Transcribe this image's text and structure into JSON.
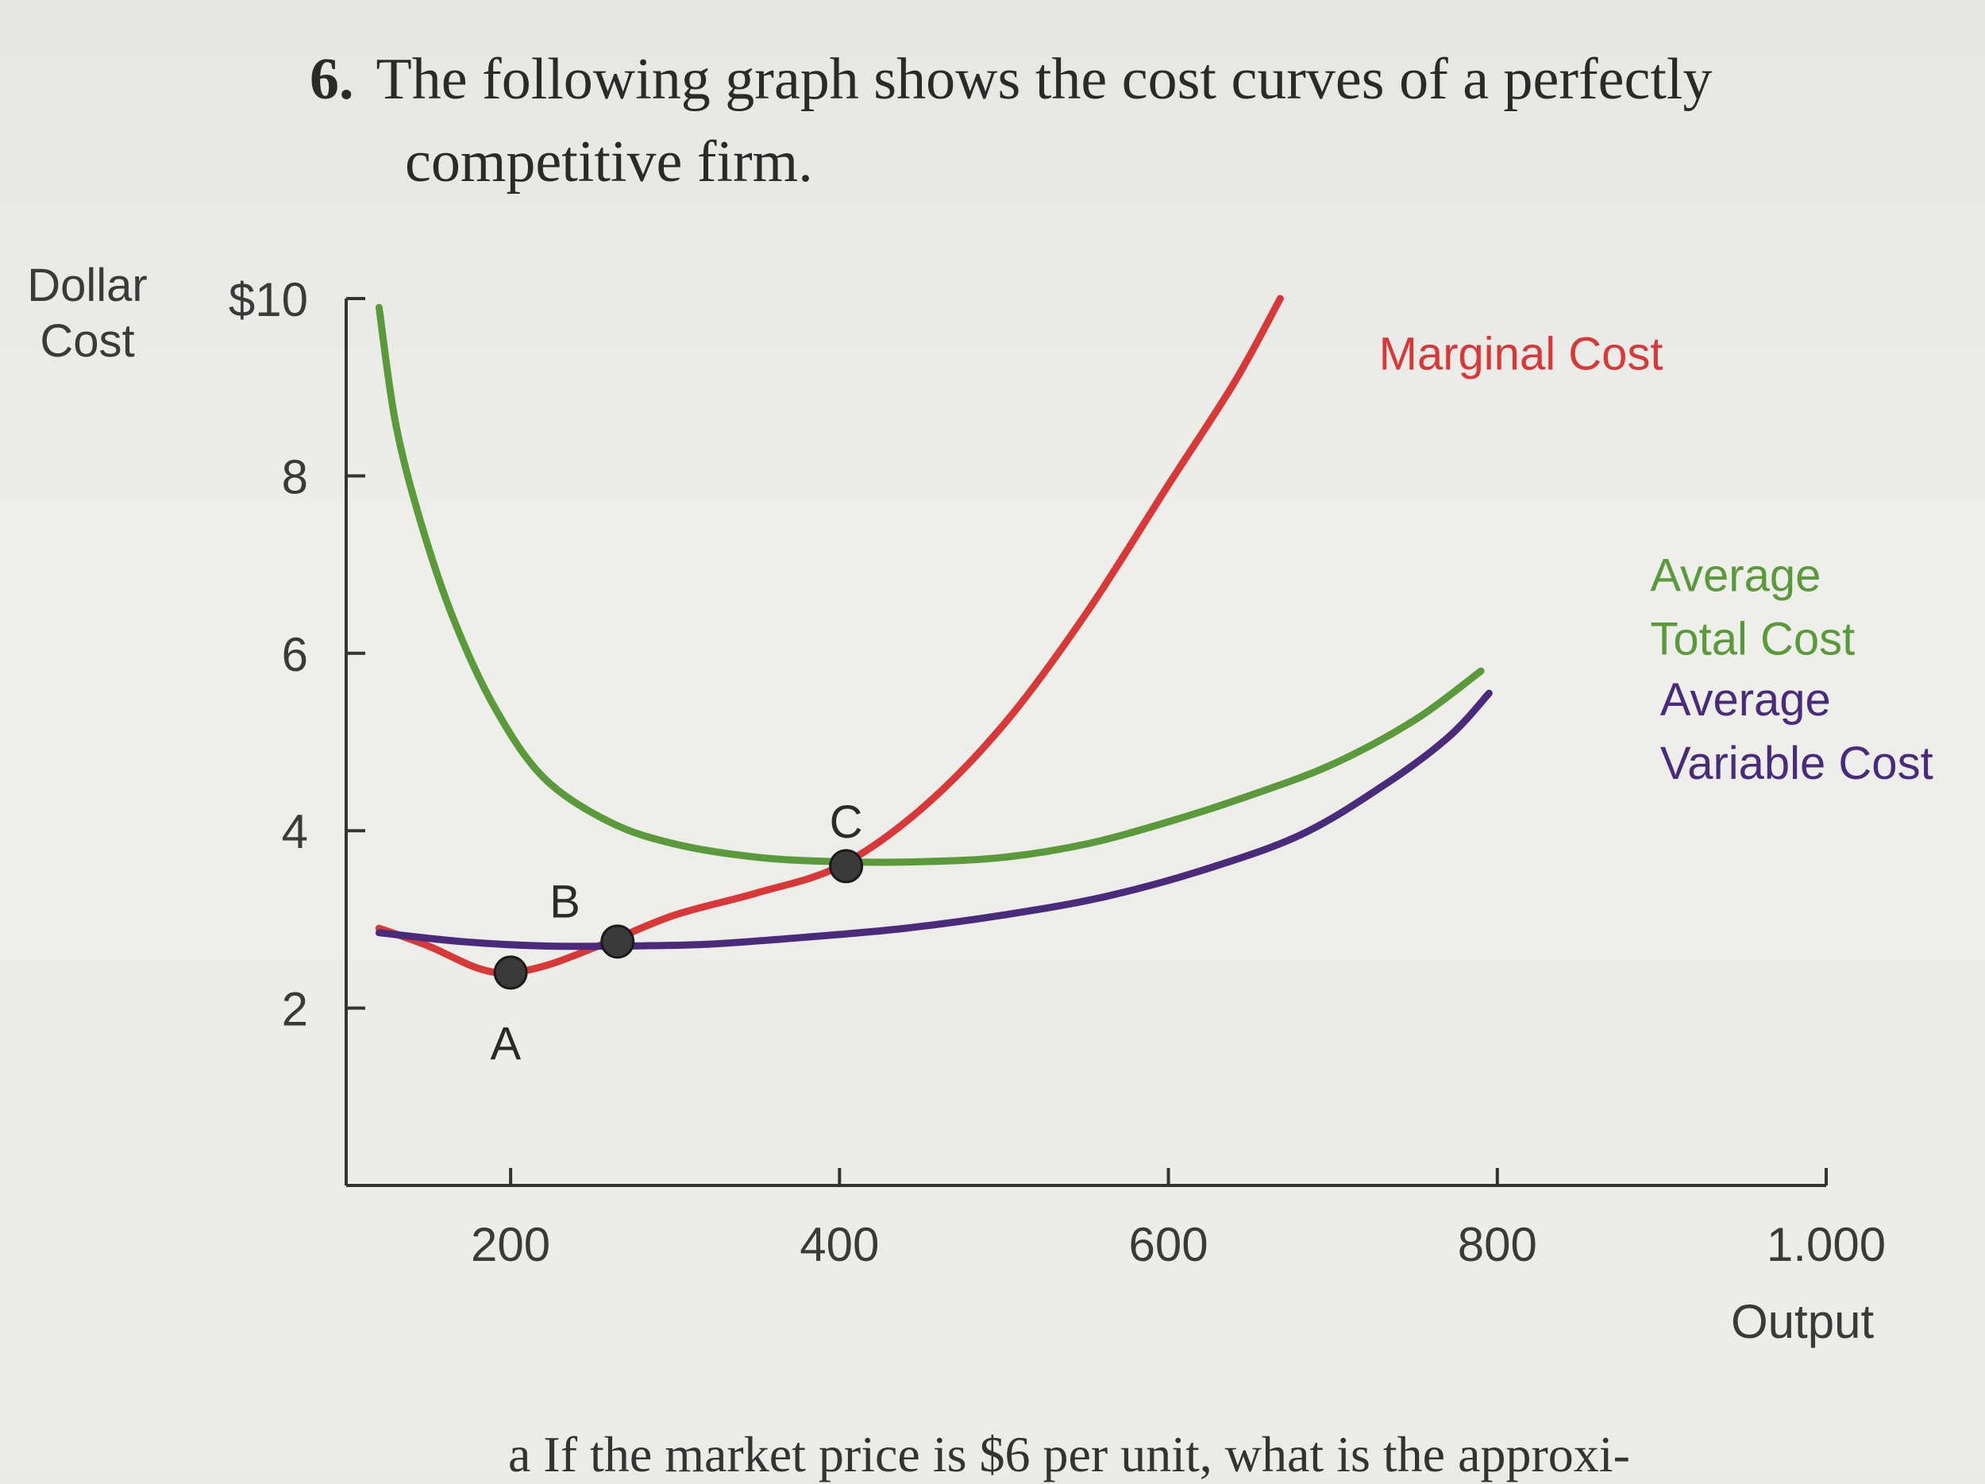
{
  "question": {
    "number": "6.",
    "line1": "The following graph shows the cost curves of a perfectly",
    "line2": "competitive firm."
  },
  "footer_text": "a   If the market price is $6 per unit, what is the approxi-",
  "colors": {
    "marginal_cost": "#d83838",
    "average_total_cost": "#5a9a3a",
    "average_variable_cost": "#4a2a7a",
    "axis": "#333333"
  },
  "chart_data": {
    "type": "line",
    "ylabel": [
      "Dollar",
      "Cost"
    ],
    "xlabel": "Output",
    "xlim": [
      100,
      1000
    ],
    "ylim": [
      0,
      10
    ],
    "x_ticks": [
      200,
      400,
      600,
      800,
      1000
    ],
    "x_tick_labels": [
      "200",
      "400",
      "600",
      "800",
      "1.000"
    ],
    "y_ticks": [
      2,
      4,
      6,
      8,
      10
    ],
    "y_tick_labels": [
      "2",
      "4",
      "6",
      "8",
      "$10"
    ],
    "series": [
      {
        "name": "Marginal Cost",
        "label_lines": [
          "Marginal Cost"
        ],
        "color_key": "marginal_cost",
        "label_at": [
          728,
          9.2
        ],
        "points": [
          [
            120,
            2.9
          ],
          [
            150,
            2.7
          ],
          [
            180,
            2.45
          ],
          [
            200,
            2.4
          ],
          [
            225,
            2.5
          ],
          [
            260,
            2.75
          ],
          [
            300,
            3.05
          ],
          [
            350,
            3.3
          ],
          [
            400,
            3.6
          ],
          [
            450,
            4.25
          ],
          [
            500,
            5.2
          ],
          [
            550,
            6.45
          ],
          [
            600,
            7.9
          ],
          [
            640,
            9.05
          ],
          [
            668,
            10.0
          ]
        ]
      },
      {
        "name": "Average Total Cost",
        "label_lines": [
          "Average",
          "Total Cost"
        ],
        "color_key": "average_total_cost",
        "label_at": [
          893,
          6.7
        ],
        "points": [
          [
            120,
            9.9
          ],
          [
            130,
            8.6
          ],
          [
            145,
            7.5
          ],
          [
            165,
            6.4
          ],
          [
            190,
            5.4
          ],
          [
            220,
            4.6
          ],
          [
            260,
            4.1
          ],
          [
            300,
            3.85
          ],
          [
            350,
            3.7
          ],
          [
            400,
            3.65
          ],
          [
            450,
            3.65
          ],
          [
            500,
            3.7
          ],
          [
            550,
            3.85
          ],
          [
            600,
            4.1
          ],
          [
            650,
            4.4
          ],
          [
            700,
            4.75
          ],
          [
            750,
            5.25
          ],
          [
            790,
            5.8
          ]
        ]
      },
      {
        "name": "Average Variable Cost",
        "label_lines": [
          "Average",
          "Variable Cost"
        ],
        "color_key": "average_variable_cost",
        "label_at": [
          899,
          5.3
        ],
        "points": [
          [
            120,
            2.85
          ],
          [
            170,
            2.75
          ],
          [
            220,
            2.7
          ],
          [
            270,
            2.7
          ],
          [
            320,
            2.72
          ],
          [
            380,
            2.8
          ],
          [
            440,
            2.9
          ],
          [
            500,
            3.05
          ],
          [
            560,
            3.25
          ],
          [
            620,
            3.55
          ],
          [
            680,
            3.95
          ],
          [
            730,
            4.5
          ],
          [
            770,
            5.05
          ],
          [
            795,
            5.55
          ]
        ]
      }
    ],
    "points": [
      {
        "label": "A",
        "x": 200,
        "y": 2.4,
        "label_at": [
          197,
          1.6
        ]
      },
      {
        "label": "B",
        "x": 265,
        "y": 2.75,
        "label_at": [
          233,
          3.2
        ]
      },
      {
        "label": "C",
        "x": 404,
        "y": 3.6,
        "label_at": [
          404,
          4.1
        ]
      }
    ]
  }
}
